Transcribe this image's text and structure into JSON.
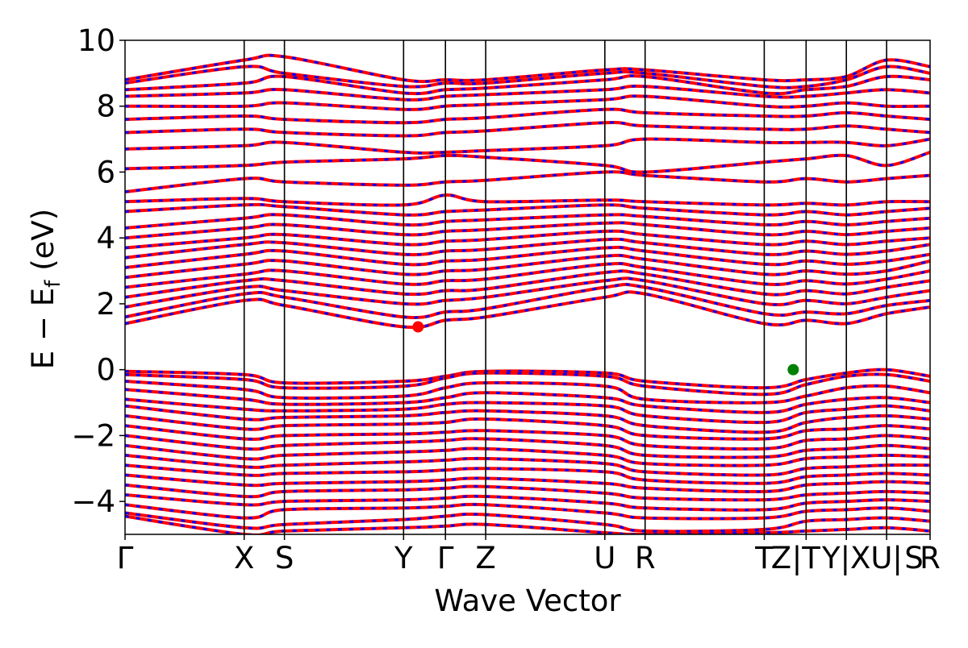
{
  "chart_data": {
    "type": "line",
    "title": "",
    "xlabel": "Wave Vector",
    "ylabel": "E − E_f (eV)",
    "ylabel_main": "E − E",
    "ylabel_sub": "f",
    "ylabel_unit": "(eV)",
    "ylim": [
      -5,
      10
    ],
    "yticks": [
      -4,
      -2,
      0,
      2,
      4,
      6,
      8,
      10
    ],
    "ytick_labels": [
      "−4",
      "−2",
      "0",
      "2",
      "4",
      "6",
      "8",
      "10"
    ],
    "grid": false,
    "kpath": {
      "total_length": 20.0,
      "positions": [
        0.0,
        2.96,
        3.96,
        6.92,
        7.96,
        8.96,
        11.92,
        12.92,
        15.88,
        16.92,
        17.92,
        18.92,
        20.0
      ],
      "labels": [
        "Γ",
        "X",
        "S",
        "Y",
        "Γ",
        "Z",
        "U",
        "R",
        "T",
        "Z",
        "|T",
        "Y|X",
        "U|",
        "S",
        "R"
      ],
      "label_positions": [
        0.0,
        2.96,
        3.96,
        6.92,
        7.96,
        8.96,
        11.92,
        12.92,
        15.88,
        16.3,
        16.92,
        17.92,
        18.92,
        19.6,
        20.0
      ]
    },
    "series": [
      {
        "color": "#ff0000",
        "style": "solid",
        "width": 4
      },
      {
        "color": "#0000ff",
        "style": "dashed",
        "width": 4
      }
    ],
    "vbm": {
      "x": 16.6,
      "y": 0.0,
      "color": "#008000"
    },
    "cbm": {
      "x": 7.28,
      "y": 1.3,
      "color": "#ff0000"
    },
    "valence_bands": [
      [
        -0.05,
        -0.15,
        -0.4,
        -0.35,
        -0.2,
        -0.05,
        -0.1,
        -0.35,
        -0.55,
        -0.3,
        -0.1,
        0.0,
        -0.2
      ],
      [
        -0.15,
        -0.3,
        -0.55,
        -0.5,
        -0.25,
        -0.1,
        -0.2,
        -0.5,
        -0.75,
        -0.45,
        -0.2,
        -0.15,
        -0.35
      ],
      [
        -0.35,
        -0.6,
        -0.85,
        -0.8,
        -0.55,
        -0.4,
        -0.5,
        -0.9,
        -1.0,
        -0.8,
        -0.55,
        -0.5,
        -0.7
      ],
      [
        -0.6,
        -0.9,
        -1.05,
        -1.0,
        -0.85,
        -0.7,
        -0.85,
        -1.1,
        -1.3,
        -1.05,
        -0.9,
        -0.85,
        -1.0
      ],
      [
        -0.9,
        -1.2,
        -1.25,
        -1.2,
        -1.05,
        -1.0,
        -1.1,
        -1.4,
        -1.6,
        -1.3,
        -1.2,
        -1.1,
        -1.25
      ],
      [
        -1.1,
        -1.5,
        -1.45,
        -1.4,
        -1.3,
        -1.25,
        -1.4,
        -1.7,
        -1.9,
        -1.6,
        -1.45,
        -1.4,
        -1.5
      ],
      [
        -1.4,
        -1.8,
        -1.7,
        -1.65,
        -1.6,
        -1.5,
        -1.7,
        -2.0,
        -2.1,
        -1.85,
        -1.8,
        -1.7,
        -1.8
      ],
      [
        -1.7,
        -2.1,
        -2.0,
        -1.95,
        -1.9,
        -1.85,
        -2.0,
        -2.3,
        -2.4,
        -2.15,
        -2.1,
        -2.0,
        -2.1
      ],
      [
        -2.0,
        -2.4,
        -2.3,
        -2.2,
        -2.15,
        -2.1,
        -2.3,
        -2.6,
        -2.65,
        -2.45,
        -2.4,
        -2.3,
        -2.4
      ],
      [
        -2.3,
        -2.7,
        -2.6,
        -2.5,
        -2.45,
        -2.4,
        -2.6,
        -2.85,
        -2.9,
        -2.7,
        -2.65,
        -2.6,
        -2.65
      ],
      [
        -2.6,
        -2.95,
        -2.9,
        -2.8,
        -2.75,
        -2.7,
        -2.85,
        -3.1,
        -3.2,
        -3.0,
        -2.95,
        -2.9,
        -2.9
      ],
      [
        -2.9,
        -3.2,
        -3.15,
        -3.1,
        -3.05,
        -3.0,
        -3.1,
        -3.35,
        -3.45,
        -3.25,
        -3.2,
        -3.15,
        -3.2
      ],
      [
        -3.2,
        -3.5,
        -3.45,
        -3.4,
        -3.35,
        -3.3,
        -3.45,
        -3.6,
        -3.7,
        -3.5,
        -3.45,
        -3.4,
        -3.45
      ],
      [
        -3.5,
        -3.85,
        -3.7,
        -3.65,
        -3.6,
        -3.55,
        -3.75,
        -3.9,
        -3.95,
        -3.8,
        -3.75,
        -3.7,
        -3.75
      ],
      [
        -3.8,
        -4.1,
        -4.0,
        -3.95,
        -3.9,
        -3.85,
        -4.05,
        -4.2,
        -4.25,
        -4.05,
        -4.0,
        -3.95,
        -4.0
      ],
      [
        -4.1,
        -4.5,
        -4.25,
        -4.2,
        -4.15,
        -4.1,
        -4.35,
        -4.5,
        -4.5,
        -4.3,
        -4.25,
        -4.2,
        -4.3
      ],
      [
        -4.35,
        -4.8,
        -4.7,
        -4.55,
        -4.45,
        -4.4,
        -4.7,
        -4.9,
        -4.85,
        -4.6,
        -4.55,
        -4.5,
        -4.6
      ],
      [
        -4.45,
        -5.0,
        -4.9,
        -4.8,
        -4.75,
        -4.7,
        -4.95,
        -5.0,
        -4.95,
        -4.9,
        -4.85,
        -4.8,
        -4.9
      ]
    ],
    "conduction_bands": [
      [
        1.4,
        2.1,
        1.95,
        1.3,
        1.5,
        1.6,
        2.2,
        2.3,
        1.4,
        1.5,
        1.4,
        1.7,
        1.9
      ],
      [
        1.6,
        2.3,
        2.2,
        1.6,
        1.75,
        1.85,
        2.5,
        2.5,
        1.7,
        1.75,
        1.7,
        1.95,
        2.1
      ],
      [
        1.9,
        2.5,
        2.4,
        2.0,
        2.1,
        2.2,
        2.7,
        2.7,
        2.0,
        2.1,
        2.0,
        2.2,
        2.4
      ],
      [
        2.2,
        2.7,
        2.7,
        2.3,
        2.4,
        2.45,
        2.95,
        2.9,
        2.3,
        2.4,
        2.3,
        2.5,
        2.7
      ],
      [
        2.5,
        2.9,
        3.0,
        2.6,
        2.7,
        2.75,
        3.2,
        3.1,
        2.6,
        2.7,
        2.6,
        2.75,
        3.0
      ],
      [
        2.8,
        3.2,
        3.3,
        2.9,
        3.0,
        3.05,
        3.45,
        3.35,
        2.9,
        3.0,
        2.9,
        3.0,
        3.3
      ],
      [
        3.1,
        3.5,
        3.6,
        3.2,
        3.3,
        3.35,
        3.7,
        3.6,
        3.2,
        3.3,
        3.2,
        3.3,
        3.5
      ],
      [
        3.4,
        3.8,
        3.85,
        3.5,
        3.6,
        3.65,
        3.95,
        3.85,
        3.5,
        3.6,
        3.5,
        3.6,
        3.8
      ],
      [
        3.7,
        4.0,
        4.1,
        3.8,
        3.9,
        3.95,
        4.2,
        4.1,
        3.8,
        3.9,
        3.8,
        3.9,
        4.0
      ],
      [
        4.0,
        4.3,
        4.4,
        4.1,
        4.2,
        4.25,
        4.45,
        4.4,
        4.1,
        4.2,
        4.1,
        4.2,
        4.3
      ],
      [
        4.3,
        4.6,
        4.7,
        4.4,
        4.5,
        4.55,
        4.7,
        4.65,
        4.4,
        4.5,
        4.4,
        4.5,
        4.6
      ],
      [
        4.8,
        5.0,
        4.95,
        4.7,
        4.8,
        4.85,
        5.0,
        4.9,
        4.7,
        4.8,
        4.7,
        4.8,
        4.9
      ],
      [
        5.1,
        5.2,
        5.1,
        5.0,
        5.3,
        5.1,
        5.15,
        5.1,
        5.0,
        5.05,
        5.0,
        5.1,
        5.1
      ],
      [
        5.4,
        5.8,
        5.7,
        5.6,
        5.7,
        5.75,
        6.0,
        5.9,
        5.7,
        5.8,
        5.7,
        5.8,
        5.9
      ],
      [
        6.1,
        6.2,
        6.3,
        6.4,
        6.5,
        6.45,
        6.2,
        6.0,
        6.3,
        6.4,
        6.5,
        6.2,
        6.6
      ],
      [
        6.7,
        6.8,
        6.9,
        6.6,
        6.6,
        6.65,
        6.8,
        7.0,
        6.9,
        6.9,
        6.9,
        6.8,
        7.0
      ],
      [
        7.2,
        7.3,
        7.2,
        7.1,
        7.2,
        7.25,
        7.5,
        7.4,
        7.3,
        7.3,
        7.4,
        7.3,
        7.2
      ],
      [
        7.6,
        7.7,
        7.6,
        7.5,
        7.6,
        7.65,
        7.9,
        7.8,
        7.7,
        7.7,
        7.8,
        7.7,
        7.6
      ],
      [
        8.0,
        8.0,
        8.1,
        7.9,
        8.0,
        8.05,
        8.2,
        8.3,
        8.0,
        8.0,
        8.1,
        8.0,
        8.0
      ],
      [
        8.3,
        8.4,
        8.5,
        8.2,
        8.3,
        8.35,
        8.5,
        8.6,
        8.3,
        8.3,
        8.4,
        8.5,
        8.4
      ],
      [
        8.5,
        8.7,
        8.9,
        8.4,
        8.5,
        8.55,
        8.8,
        8.9,
        8.4,
        8.5,
        8.6,
        8.9,
        8.8
      ],
      [
        8.7,
        9.2,
        9.0,
        8.6,
        8.7,
        8.7,
        9.0,
        9.0,
        8.6,
        8.6,
        8.8,
        9.2,
        9.0
      ],
      [
        8.8,
        9.4,
        9.5,
        8.8,
        8.8,
        8.8,
        9.1,
        9.1,
        8.8,
        8.8,
        8.9,
        9.4,
        9.2
      ]
    ]
  }
}
